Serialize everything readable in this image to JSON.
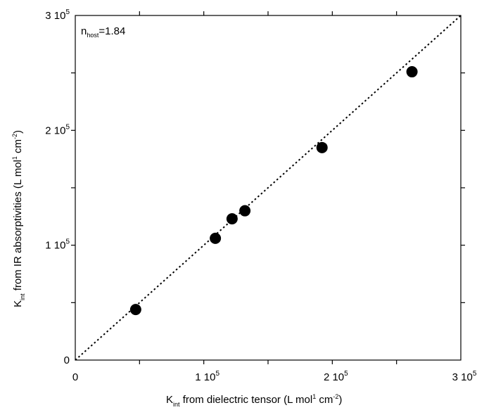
{
  "chart_data": {
    "type": "scatter",
    "series": [
      {
        "x": [
          47000,
          109000,
          122000,
          132000,
          192000,
          262000
        ],
        "y": [
          44000,
          106000,
          123000,
          130000,
          185000,
          251000
        ],
        "marker": "filled-circle",
        "color": "#000000"
      }
    ],
    "reference_line": {
      "slope": 1,
      "intercept": 0,
      "style": "dotted"
    },
    "xlim": [
      0,
      300000
    ],
    "ylim": [
      0,
      300000
    ],
    "x_ticks": [
      {
        "value": 0,
        "mantissa": "0",
        "exponent": ""
      },
      {
        "value": 100000,
        "mantissa": "1 10",
        "exponent": "5"
      },
      {
        "value": 200000,
        "mantissa": "2 10",
        "exponent": "5"
      },
      {
        "value": 300000,
        "mantissa": "3 10",
        "exponent": "5"
      }
    ],
    "y_ticks": [
      {
        "value": 0,
        "mantissa": "0",
        "exponent": ""
      },
      {
        "value": 100000,
        "mantissa": "1 10",
        "exponent": "5"
      },
      {
        "value": 200000,
        "mantissa": "2 10",
        "exponent": "5"
      },
      {
        "value": 300000,
        "mantissa": "3 10",
        "exponent": "5"
      }
    ],
    "minor_tick_step": 50000,
    "xlabel": {
      "k": "K",
      "k_sub": "int",
      "part1": " from dielectric tensor  (L mol",
      "sup1": "1",
      "part2": " cm",
      "sup2": "-2",
      "part3": ")"
    },
    "ylabel": {
      "k": "K",
      "k_sub": "int",
      "part1": " from IR absorptivities (L mol",
      "sup1": "1",
      "part2": " cm",
      "sup2": "-2",
      "part3": ")"
    },
    "annotation": {
      "n": "n",
      "n_sub": "host",
      "value": "=1.84"
    },
    "grid": false,
    "legend": "none"
  }
}
